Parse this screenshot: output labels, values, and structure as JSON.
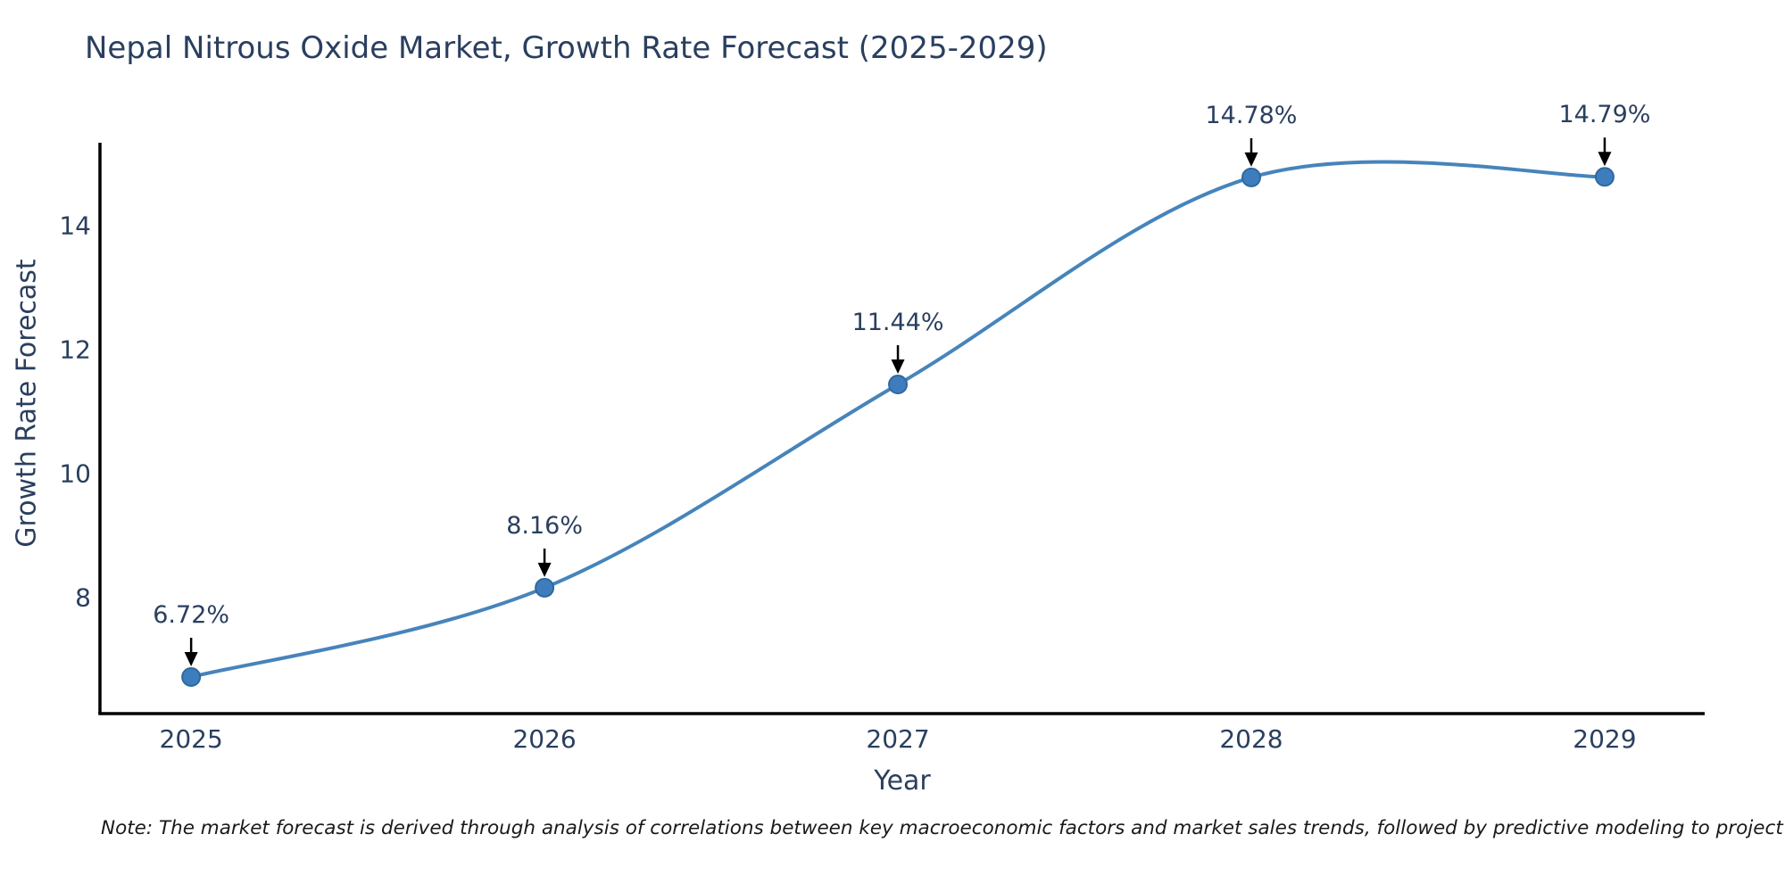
{
  "title": "Nepal Nitrous Oxide Market, Growth Rate Forecast (2025-2029)",
  "note": "Note: The market forecast is derived through analysis of correlations between key macroeconomic factors and market sales trends, followed by predictive modeling to project future sales.",
  "chart_data": {
    "type": "line",
    "title": "Nepal Nitrous Oxide Market, Growth Rate Forecast (2025-2029)",
    "xlabel": "Year",
    "ylabel": "Growth Rate Forecast",
    "x": [
      2025,
      2026,
      2027,
      2028,
      2029
    ],
    "y": [
      6.72,
      8.16,
      11.44,
      14.78,
      14.79
    ],
    "point_labels": [
      "6.72%",
      "8.16%",
      "11.44%",
      "14.78%",
      "14.79%"
    ],
    "yticks": [
      8,
      10,
      12,
      14
    ],
    "xlim": [
      2024.742,
      2029.283
    ],
    "ylim": [
      6.13,
      15.34
    ],
    "line_shape": "spline",
    "grid": "off",
    "legend": "none",
    "colors": {
      "line": "#4684bb",
      "marker_fill": "#3e7dbd",
      "marker_edge": "#2f689f",
      "arrow": "#000000",
      "axis_line": "#000000",
      "text": "#2a3f5f",
      "note_text": "#1a1a1a",
      "background": "#ffffff"
    }
  }
}
